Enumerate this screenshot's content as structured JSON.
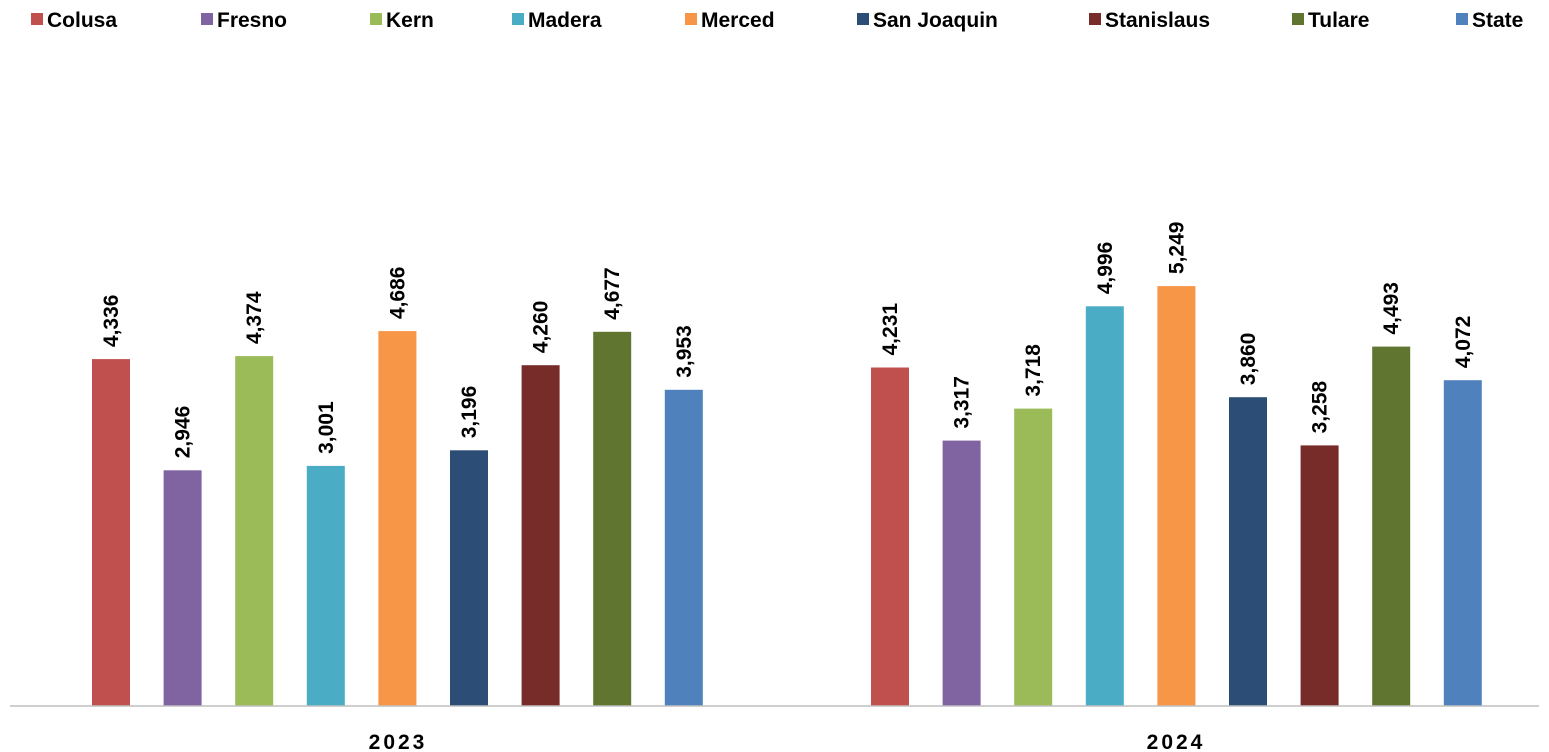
{
  "chart_data": {
    "type": "bar",
    "title": "",
    "xlabel": "",
    "ylabel": "",
    "categories": [
      "2023",
      "2024"
    ],
    "ylim": [
      0,
      5600
    ],
    "grid": false,
    "legend_position": "top",
    "series": [
      {
        "name": "Colusa",
        "color": "#C0504D",
        "values": [
          4336,
          4231
        ],
        "labels": [
          "4,336",
          "4,231"
        ]
      },
      {
        "name": "Fresno",
        "color": "#8064A2",
        "values": [
          2946,
          3317
        ],
        "labels": [
          "2,946",
          "3,317"
        ]
      },
      {
        "name": "Kern",
        "color": "#9BBB59",
        "values": [
          4374,
          3718
        ],
        "labels": [
          "4,374",
          "3,718"
        ]
      },
      {
        "name": "Madera",
        "color": "#4BACC6",
        "values": [
          3001,
          4996
        ],
        "labels": [
          "3,001",
          "4,996"
        ]
      },
      {
        "name": "Merced",
        "color": "#F79646",
        "values": [
          4686,
          5249
        ],
        "labels": [
          "4,686",
          "5,249"
        ]
      },
      {
        "name": "San Joaquin",
        "color": "#2C4D75",
        "values": [
          3196,
          3860
        ],
        "labels": [
          "3,196",
          "3,860"
        ]
      },
      {
        "name": "Stanislaus",
        "color": "#772C2A",
        "values": [
          4260,
          3258
        ],
        "labels": [
          "4,260",
          "3,258"
        ]
      },
      {
        "name": "Tulare",
        "color": "#5F7530",
        "values": [
          4677,
          4493
        ],
        "labels": [
          "4,677",
          "4,493"
        ]
      },
      {
        "name": "State",
        "color": "#4F81BD",
        "values": [
          3953,
          4072
        ],
        "labels": [
          "3,953",
          "4,072"
        ]
      }
    ]
  }
}
